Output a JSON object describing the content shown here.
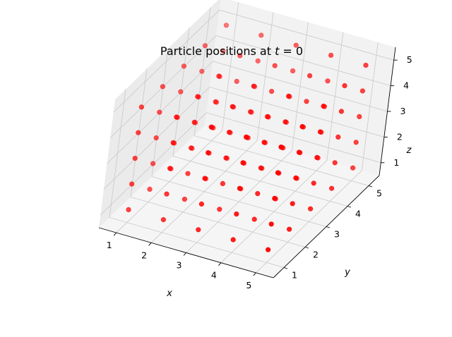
{
  "chart_data": {
    "type": "scatter",
    "projection": "3d",
    "title_prefix": "Particle positions at ",
    "title_var": "t",
    "title_suffix": " = 0",
    "xlabel": "x",
    "ylabel": "y",
    "zlabel": "z",
    "x_ticks": [
      "1",
      "2",
      "3",
      "4",
      "5"
    ],
    "y_ticks": [
      "1",
      "2",
      "3",
      "4",
      "5"
    ],
    "z_ticks": [
      "1",
      "2",
      "3",
      "4",
      "5"
    ],
    "xlim": [
      0.5,
      5.5
    ],
    "ylim": [
      0.5,
      5.5
    ],
    "zlim": [
      0.5,
      5.5
    ],
    "grid": true,
    "lattice": {
      "x_values": [
        1,
        2,
        3,
        4,
        5
      ],
      "y_values": [
        1,
        2,
        3,
        4,
        5
      ],
      "z_values": [
        1,
        2,
        3,
        4,
        5
      ],
      "description_count": 125
    },
    "marker_color": "#ff0000",
    "pane_color": "#f2f2f2"
  }
}
